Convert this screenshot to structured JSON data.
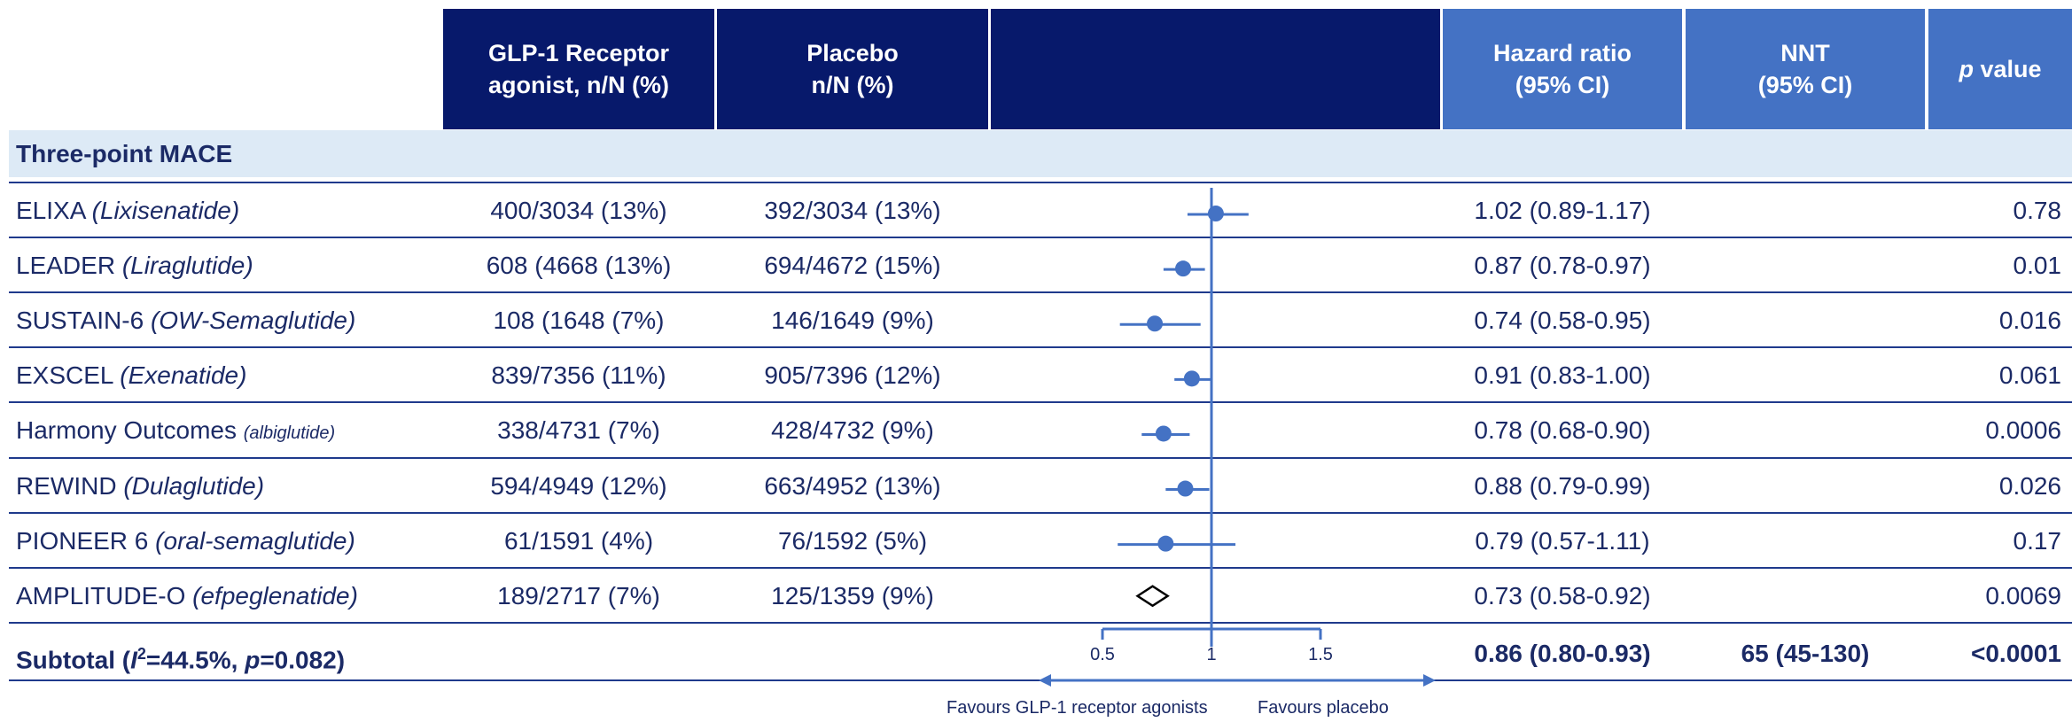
{
  "header": {
    "col_glp1": [
      "GLP-1 Receptor",
      "agonist, n/N (%)"
    ],
    "col_placebo": [
      "Placebo",
      "n/N (%)"
    ],
    "col_hr": [
      "Hazard ratio",
      "(95% CI)"
    ],
    "col_nnt": [
      "NNT",
      "(95% CI)"
    ],
    "col_p_italic": "p",
    "col_p_rest": " value"
  },
  "section_label": "Three-point MACE",
  "rows": [
    {
      "trial": "ELIXA ",
      "drug": "(Lixisenatide)",
      "glp1": "400/3034 (13%)",
      "placebo": "392/3034 (13%)",
      "hr": "1.02 (0.89-1.17)",
      "p": "0.78"
    },
    {
      "trial": "LEADER ",
      "drug": "(Liraglutide)",
      "glp1": "608 (4668 (13%)",
      "placebo": "694/4672 (15%)",
      "hr": "0.87 (0.78-0.97)",
      "p": "0.01"
    },
    {
      "trial": "SUSTAIN-6 ",
      "drug": "(OW-Semaglutide)",
      "glp1": "108 (1648 (7%)",
      "placebo": "146/1649 (9%)",
      "hr": "0.74 (0.58-0.95)",
      "p": "0.016"
    },
    {
      "trial": "EXSCEL ",
      "drug": "(Exenatide)",
      "glp1": "839/7356 (11%)",
      "placebo": "905/7396 (12%)",
      "hr": "0.91 (0.83-1.00)",
      "p": "0.061"
    },
    {
      "trial": "Harmony Outcomes ",
      "drug": "(albiglutide)",
      "small": true,
      "glp1": "338/4731 (7%)",
      "placebo": "428/4732 (9%)",
      "hr": "0.78 (0.68-0.90)",
      "p": "0.0006"
    },
    {
      "trial": "REWIND ",
      "drug": "(Dulaglutide)",
      "glp1": "594/4949 (12%)",
      "placebo": "663/4952 (13%)",
      "hr": "0.88 (0.79-0.99)",
      "p": "0.026"
    },
    {
      "trial": "PIONEER 6 ",
      "drug": "(oral-semaglutide)",
      "glp1": "61/1591 (4%)",
      "placebo": "76/1592 (5%)",
      "hr": "0.79 (0.57-1.11)",
      "p": "0.17"
    },
    {
      "trial": "AMPLITUDE-O ",
      "drug": "(efpeglenatide)",
      "glp1": "189/2717 (7%)",
      "placebo": "125/1359 (9%)",
      "hr": "0.73 (0.58-0.92)",
      "p": "0.0069"
    }
  ],
  "subtotal": {
    "label_prefix": "Subtotal (",
    "label_i": "I",
    "label_sup": "2",
    "label_mid": "=44.5%, ",
    "label_p": "p",
    "label_end": "=0.082)",
    "hr": "0.86 (0.80-0.93)",
    "nnt": "65 (45-130)",
    "p": "<0.0001"
  },
  "favours_left": "Favours GLP-1 receptor agonists",
  "favours_right": "Favours placebo",
  "colors": {
    "header_dark": "#07196b",
    "header_light": "#4472c4",
    "marker": "#4472c4",
    "section_bg": "#ddeaf6",
    "text": "#1b2a66"
  },
  "chart_data": {
    "type": "forest",
    "xlabel": "",
    "x_ticks": [
      "0.5",
      "1",
      "1.5"
    ],
    "xlim": [
      0.5,
      1.5
    ],
    "reference_line": 1,
    "points": [
      {
        "label": "ELIXA",
        "hr": 1.02,
        "lo": 0.89,
        "hi": 1.17,
        "marker": "circle"
      },
      {
        "label": "LEADER",
        "hr": 0.87,
        "lo": 0.78,
        "hi": 0.97,
        "marker": "circle"
      },
      {
        "label": "SUSTAIN-6",
        "hr": 0.74,
        "lo": 0.58,
        "hi": 0.95,
        "marker": "circle"
      },
      {
        "label": "EXSCEL",
        "hr": 0.91,
        "lo": 0.83,
        "hi": 1.0,
        "marker": "circle"
      },
      {
        "label": "Harmony Outcomes",
        "hr": 0.78,
        "lo": 0.68,
        "hi": 0.9,
        "marker": "circle"
      },
      {
        "label": "REWIND",
        "hr": 0.88,
        "lo": 0.79,
        "hi": 0.99,
        "marker": "circle"
      },
      {
        "label": "PIONEER 6",
        "hr": 0.79,
        "lo": 0.57,
        "hi": 1.11,
        "marker": "circle"
      },
      {
        "label": "AMPLITUDE-O",
        "hr": 0.73,
        "lo": 0.58,
        "hi": 0.92,
        "marker": "diamond"
      }
    ]
  }
}
